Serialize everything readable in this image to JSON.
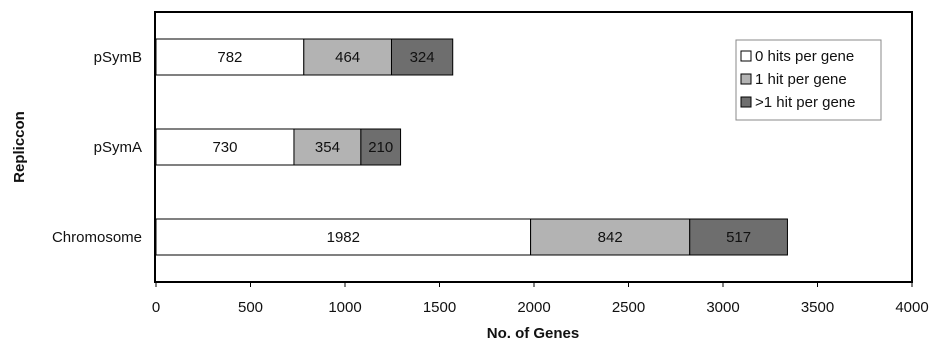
{
  "chart_data": {
    "type": "bar",
    "orientation": "horizontal",
    "stacked": true,
    "categories": [
      "pSymB",
      "pSymA",
      "Chromosome"
    ],
    "series": [
      {
        "name": "0 hits per gene",
        "color": "#ffffff",
        "values": [
          782,
          730,
          1982
        ]
      },
      {
        "name": "1 hit per gene",
        "color": "#b3b3b3",
        "values": [
          464,
          354,
          842
        ]
      },
      {
        "name": ">1 hit per gene",
        "color": "#6e6e6e",
        "values": [
          324,
          210,
          517
        ]
      }
    ],
    "data_labels": [
      [
        "782",
        "730",
        "1982"
      ],
      [
        "464",
        "354",
        "842"
      ],
      [
        "324",
        "210",
        "517"
      ]
    ],
    "xlabel": "No. of Genes",
    "ylabel": "Repliccon",
    "xlim": [
      0,
      4000
    ],
    "xticks": [
      "0",
      "500",
      "1000",
      "1500",
      "2000",
      "2500",
      "3000",
      "3500",
      "4000"
    ],
    "grid": false,
    "legend": "top-right"
  }
}
